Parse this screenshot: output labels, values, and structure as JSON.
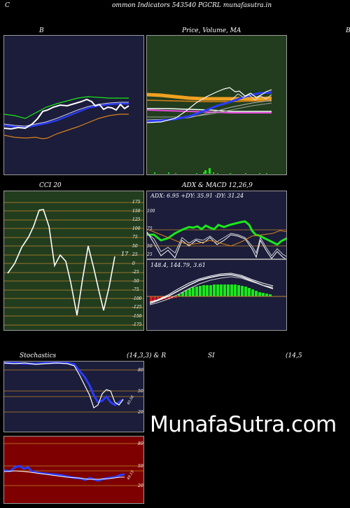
{
  "header": {
    "title": "ommon Indicators 543540 PGCRL munafasutra.in",
    "left_letter": "C"
  },
  "panels": {
    "bollinger": {
      "title": "B"
    },
    "price_ma": {
      "title": "Price, Volume, MA"
    },
    "right_edge": {
      "title": "B"
    },
    "cci": {
      "title": "CCI 20",
      "value_label": "17",
      "ticks": [
        "175",
        "150",
        "125",
        "100",
        "75",
        "50",
        "25",
        "0",
        "-25",
        "-50",
        "-75",
        "-100",
        "-125",
        "-150",
        "-175"
      ]
    },
    "adx_macd": {
      "title": "ADX  & MACD 12,26,9",
      "adx_label": "ADX: 6.95 +DY: 35.91 -DY: 31.24",
      "adx_ticks": [
        "100",
        "75",
        "50",
        "25"
      ],
      "macd_label": "148.4,  144.79,  3.61"
    },
    "stochastics": {
      "title": "Stochastics",
      "params": "(14,3,3) & R",
      "ticks": [
        "80",
        "50",
        "20"
      ],
      "value_label": "40.58"
    },
    "rsi": {
      "title": "SI",
      "params": "(14,5",
      "ticks": [
        "80",
        "50",
        "20"
      ],
      "value_label": "49.15"
    }
  },
  "watermark": "MunafaSutra.com",
  "colors": {
    "navy_panel": "#1b1d3a",
    "green_panel": "#223d1e",
    "red_panel": "#7e0000",
    "orange_lines": "#d9821b",
    "blue_line": "#2a3cff",
    "bright_green": "#19e81a"
  }
}
